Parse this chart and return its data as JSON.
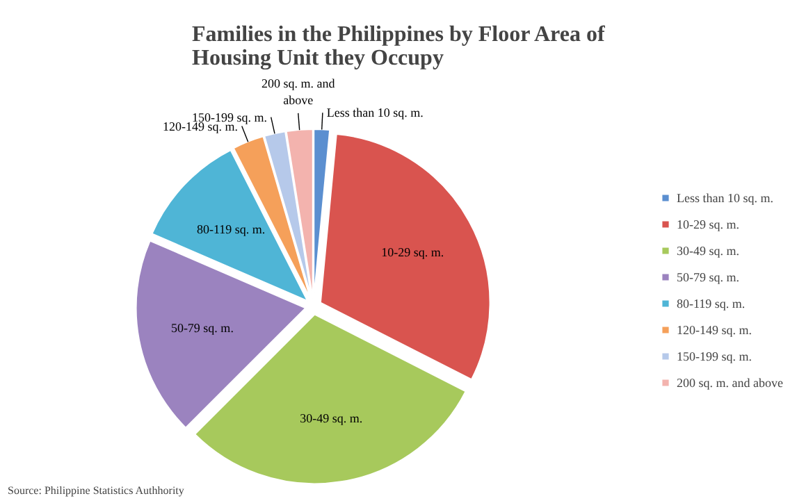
{
  "chart_data": {
    "type": "pie",
    "title": "Families in the Philippines by Floor Area of Housing Unit they Occupy",
    "categories": [
      "Less than 10 sq. m.",
      "10-29 sq. m.",
      "30-49 sq. m.",
      "50-79 sq. m.",
      "80-119 sq. m.",
      "120-149 sq. m.",
      "150-199 sq. m.",
      "200 sq. m. and above"
    ],
    "values": [
      1.5,
      31,
      30,
      19,
      11,
      3,
      2,
      2.5
    ],
    "colors": [
      "#5b8fd0",
      "#d9544f",
      "#a7c95c",
      "#9b83bf",
      "#4fb5d6",
      "#f5a05a",
      "#b6c9ea",
      "#f3b3ae"
    ],
    "legend": "right",
    "annotations": [
      "Source: Philippine Statistics Authhority"
    ]
  }
}
